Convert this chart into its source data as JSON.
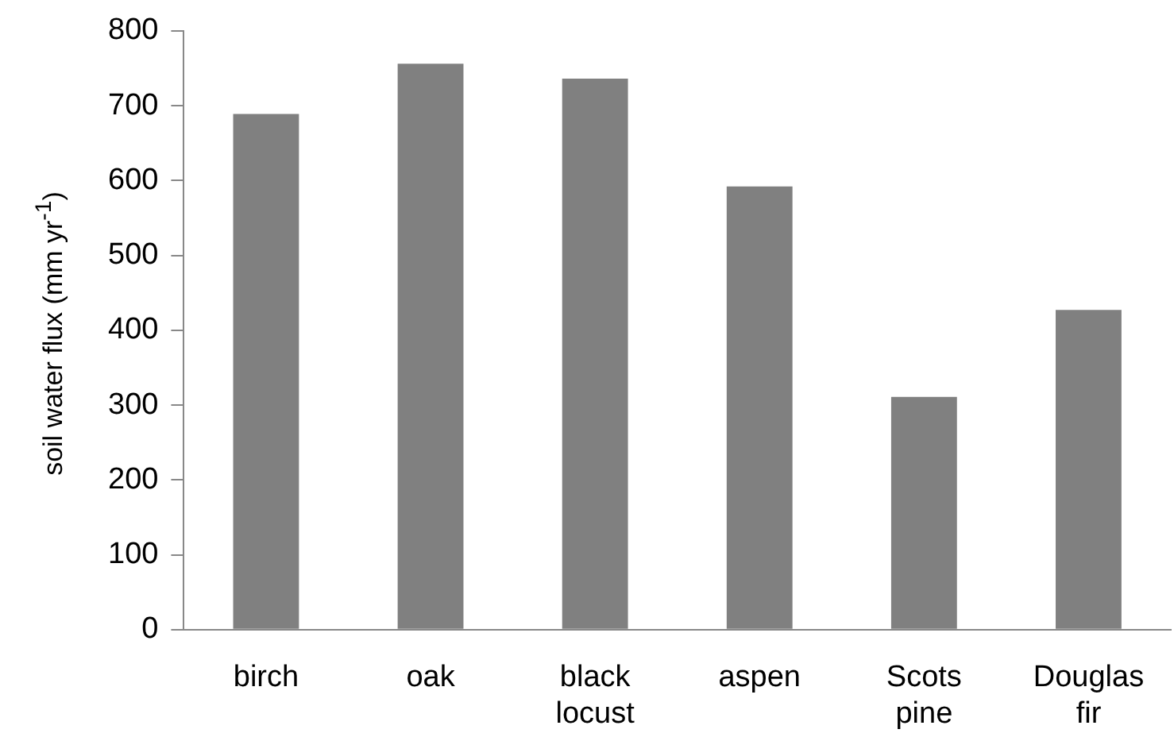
{
  "chart_data": {
    "type": "bar",
    "ylabel": "soil water flux  (mm yr$^{-1}$)",
    "categories": [
      "birch",
      "oak",
      "black locust",
      "aspen",
      "Scots pine",
      "Douglas fir"
    ],
    "values": [
      689,
      756,
      736,
      592,
      311,
      427
    ],
    "color": "#808080",
    "ylim": [
      0,
      800
    ],
    "yticks": [
      0,
      100,
      200,
      300,
      400,
      500,
      600,
      700,
      800
    ],
    "grid": false,
    "legend": false
  }
}
